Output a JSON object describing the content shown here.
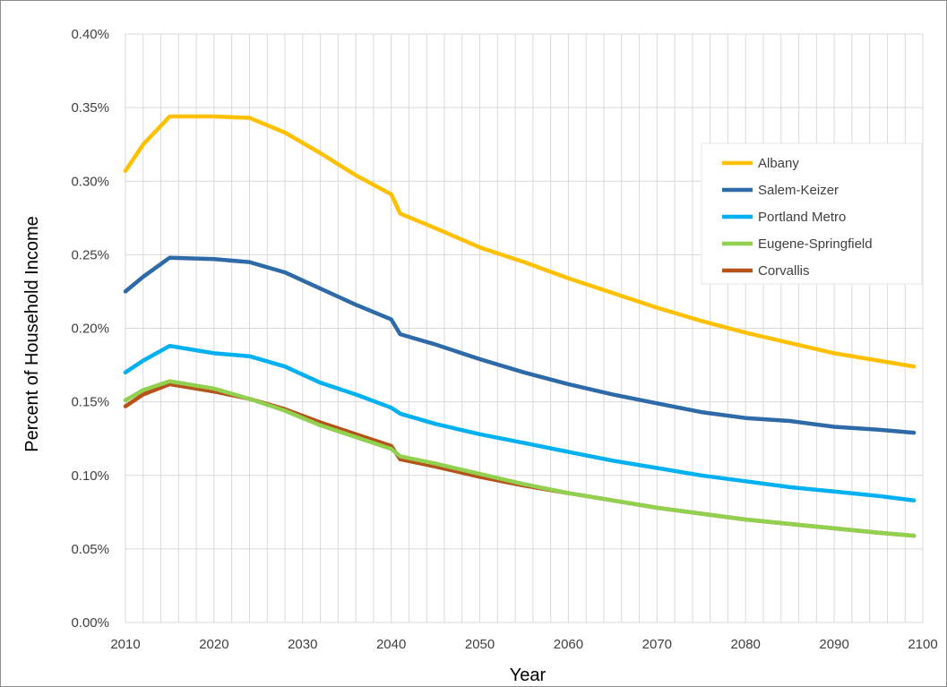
{
  "chart_data": {
    "type": "line",
    "xlabel": "Year",
    "ylabel": "Percent of Household Income",
    "xlim": [
      2010,
      2100
    ],
    "ylim": [
      0,
      0.4
    ],
    "x_ticks": [
      "2010",
      "2020",
      "2030",
      "2040",
      "2050",
      "2060",
      "2070",
      "2080",
      "2090",
      "2100"
    ],
    "y_ticks": [
      "0.00%",
      "0.05%",
      "0.10%",
      "0.15%",
      "0.20%",
      "0.25%",
      "0.30%",
      "0.35%",
      "0.40%"
    ],
    "grid": true,
    "legend_position": "top-right",
    "x": [
      2010,
      2012,
      2015,
      2020,
      2024,
      2028,
      2032,
      2036,
      2040,
      2041,
      2045,
      2050,
      2055,
      2060,
      2065,
      2070,
      2075,
      2080,
      2085,
      2090,
      2095,
      2099
    ],
    "series": [
      {
        "name": "Albany",
        "color": "#ffc000",
        "values": [
          0.307,
          0.325,
          0.344,
          0.344,
          0.343,
          0.333,
          0.319,
          0.304,
          0.291,
          0.278,
          0.268,
          0.255,
          0.245,
          0.234,
          0.224,
          0.214,
          0.205,
          0.197,
          0.19,
          0.183,
          0.178,
          0.174
        ]
      },
      {
        "name": "Salem-Keizer",
        "color": "#2e6aa8",
        "values": [
          0.225,
          0.235,
          0.248,
          0.247,
          0.245,
          0.238,
          0.227,
          0.216,
          0.206,
          0.196,
          0.189,
          0.179,
          0.17,
          0.162,
          0.155,
          0.149,
          0.143,
          0.139,
          0.137,
          0.133,
          0.131,
          0.129
        ]
      },
      {
        "name": "Portland Metro",
        "color": "#00b0f0",
        "values": [
          0.17,
          0.178,
          0.188,
          0.183,
          0.181,
          0.174,
          0.163,
          0.155,
          0.146,
          0.142,
          0.135,
          0.128,
          0.122,
          0.116,
          0.11,
          0.105,
          0.1,
          0.096,
          0.092,
          0.089,
          0.086,
          0.083
        ]
      },
      {
        "name": "Eugene-Springfield",
        "color": "#92d050",
        "values": [
          0.151,
          0.158,
          0.164,
          0.159,
          0.152,
          0.144,
          0.134,
          0.126,
          0.118,
          0.113,
          0.108,
          0.101,
          0.094,
          0.088,
          0.083,
          0.078,
          0.074,
          0.07,
          0.067,
          0.064,
          0.061,
          0.059
        ]
      },
      {
        "name": "Corvallis",
        "color": "#b5531b",
        "values": [
          0.147,
          0.155,
          0.162,
          0.157,
          0.152,
          0.145,
          0.136,
          0.128,
          0.12,
          0.111,
          0.106,
          0.099,
          0.093,
          0.088,
          0.083,
          0.078,
          0.074,
          0.07,
          0.067,
          0.064,
          0.061,
          0.059
        ]
      }
    ]
  }
}
